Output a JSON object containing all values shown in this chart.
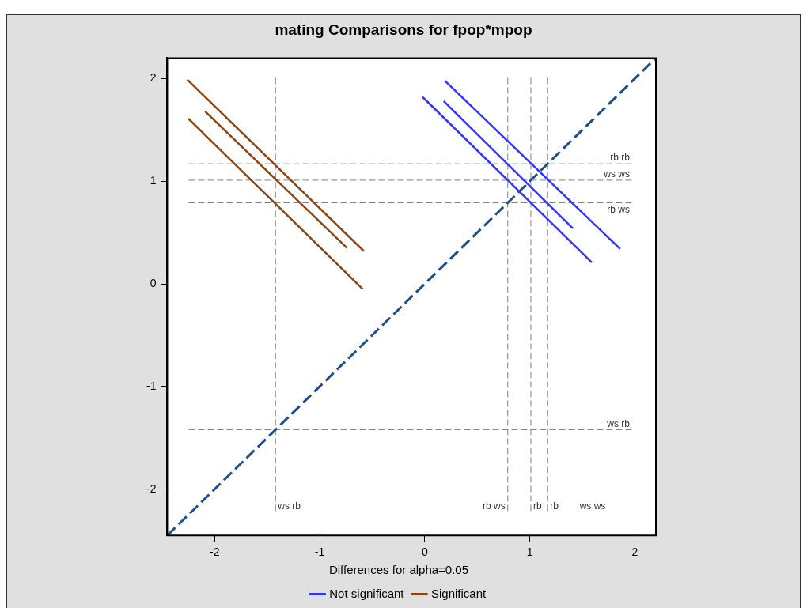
{
  "chart_data": {
    "type": "line",
    "title": "mating Comparisons for fpop*mpop",
    "legend_title": "Differences for alpha=0.05",
    "legend": "bottom",
    "marker": "none",
    "xlim": [
      -2.45,
      2.2
    ],
    "ylim": [
      -2.45,
      2.2
    ],
    "xticks": [
      -2,
      -1,
      0,
      1,
      2
    ],
    "yticks": [
      -2,
      -1,
      0,
      1,
      2
    ],
    "series": [
      {
        "name": "Not significant",
        "color": "#3333ff",
        "x": [
          0.19,
          1.86
        ],
        "values": [
          1.98,
          0.34
        ]
      },
      {
        "color": "#3333ff",
        "x": [
          -0.02,
          1.59
        ],
        "values": [
          1.82,
          0.21
        ]
      },
      {
        "color": "#3333ff",
        "x": [
          0.18,
          1.41
        ],
        "values": [
          1.78,
          0.54
        ]
      },
      {
        "name": "Significant",
        "color": "#8b4513",
        "x": [
          -2.26,
          -0.58
        ],
        "values": [
          1.99,
          0.32
        ]
      },
      {
        "color": "#8b4513",
        "x": [
          -2.09,
          -0.74
        ],
        "values": [
          1.68,
          0.35
        ]
      },
      {
        "color": "#8b4513",
        "x": [
          -2.25,
          -0.59
        ],
        "values": [
          1.61,
          -0.05
        ]
      },
      {
        "color": "#1f4e8c",
        "line_style": "dashed",
        "x": [
          -2.45,
          2.2
        ],
        "values": [
          -2.45,
          2.2
        ]
      }
    ],
    "ref_lines": [
      {
        "axis": "x",
        "value": -1.42,
        "label": "ws rb",
        "color": "#808080",
        "line_style": "dashed"
      },
      {
        "axis": "x",
        "value": 0.79,
        "label": "rb ws",
        "color": "#808080",
        "line_style": "dashed"
      },
      {
        "axis": "x",
        "value": 1.01,
        "label": "rb",
        "color": "#808080",
        "line_style": "dashed"
      },
      {
        "axis": "x",
        "value": 1.17,
        "label": "rb",
        "color": "#808080",
        "line_style": "dashed"
      },
      {
        "axis": "y",
        "value": 1.17,
        "label": "rb rb",
        "color": "#808080",
        "line_style": "dashed"
      },
      {
        "axis": "y",
        "value": 1.01,
        "label": "ws ws",
        "color": "#808080",
        "line_style": "dashed"
      },
      {
        "axis": "y",
        "value": 0.79,
        "label": "rb ws",
        "color": "#808080",
        "line_style": "dashed"
      },
      {
        "axis": "y",
        "value": -1.42,
        "label": "ws rb",
        "color": "#808080",
        "line_style": "dashed"
      }
    ],
    "annotations": [
      "ws ws"
    ]
  }
}
